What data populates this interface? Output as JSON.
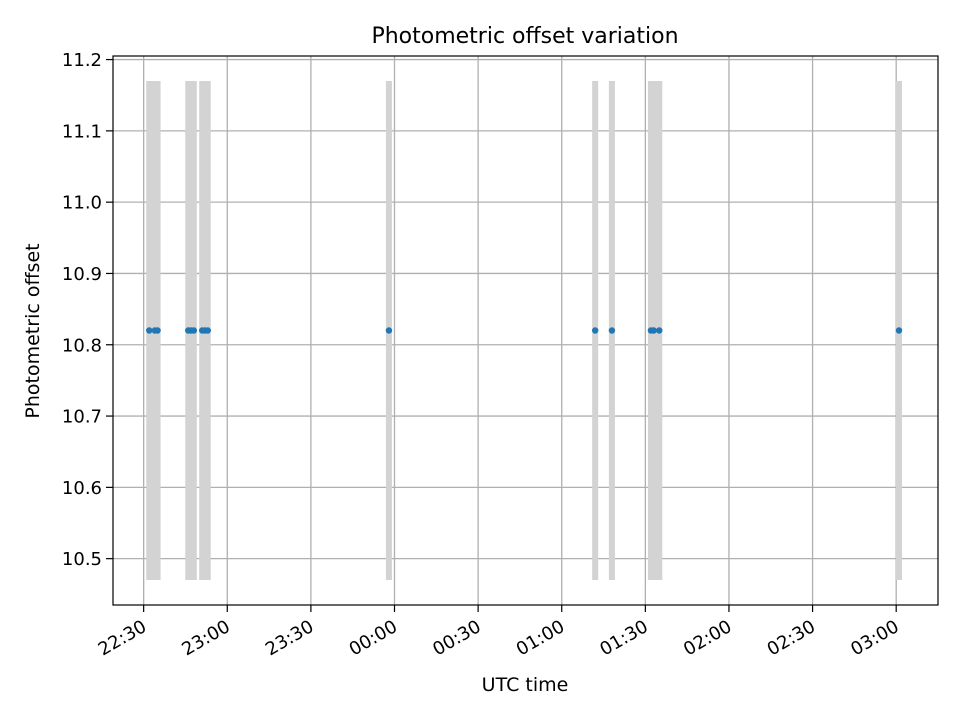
{
  "chart_data": {
    "type": "scatter",
    "title": "Photometric offset variation",
    "xlabel": "UTC time",
    "ylabel": "Photometric offset",
    "grid": true,
    "xlim": [
      "22:19",
      "03:15"
    ],
    "ylim": [
      10.435,
      11.205
    ],
    "x_ticks": [
      "22:30",
      "23:00",
      "23:30",
      "00:00",
      "00:30",
      "01:00",
      "01:30",
      "02:00",
      "02:30",
      "03:00"
    ],
    "y_ticks": [
      "10.5",
      "10.6",
      "10.7",
      "10.8",
      "10.9",
      "11.0",
      "11.1",
      "11.2"
    ],
    "points": [
      {
        "time": "22:32",
        "offset": 10.82,
        "err_low": 10.47,
        "err_high": 11.17
      },
      {
        "time": "22:34",
        "offset": 10.82,
        "err_low": 10.47,
        "err_high": 11.17
      },
      {
        "time": "22:35",
        "offset": 10.82,
        "err_low": 10.47,
        "err_high": 11.17
      },
      {
        "time": "22:46",
        "offset": 10.82,
        "err_low": 10.47,
        "err_high": 11.17
      },
      {
        "time": "22:47",
        "offset": 10.82,
        "err_low": 10.47,
        "err_high": 11.17
      },
      {
        "time": "22:48",
        "offset": 10.82,
        "err_low": 10.47,
        "err_high": 11.17
      },
      {
        "time": "22:51",
        "offset": 10.82,
        "err_low": 10.47,
        "err_high": 11.17
      },
      {
        "time": "22:52",
        "offset": 10.82,
        "err_low": 10.47,
        "err_high": 11.17
      },
      {
        "time": "22:53",
        "offset": 10.82,
        "err_low": 10.47,
        "err_high": 11.17
      },
      {
        "time": "23:58",
        "offset": 10.82,
        "err_low": 10.47,
        "err_high": 11.17
      },
      {
        "time": "01:12",
        "offset": 10.82,
        "err_low": 10.47,
        "err_high": 11.17
      },
      {
        "time": "01:18",
        "offset": 10.82,
        "err_low": 10.47,
        "err_high": 11.17
      },
      {
        "time": "01:32",
        "offset": 10.82,
        "err_low": 10.47,
        "err_high": 11.17
      },
      {
        "time": "01:33",
        "offset": 10.82,
        "err_low": 10.47,
        "err_high": 11.17
      },
      {
        "time": "01:35",
        "offset": 10.82,
        "err_low": 10.47,
        "err_high": 11.17
      },
      {
        "time": "03:01",
        "offset": 10.82,
        "err_low": 10.47,
        "err_high": 11.17
      }
    ],
    "colors": {
      "points": "#1f77b4",
      "error_bars": "#d3d3d3",
      "grid": "#b0b0b0",
      "axes": "#000000"
    }
  }
}
